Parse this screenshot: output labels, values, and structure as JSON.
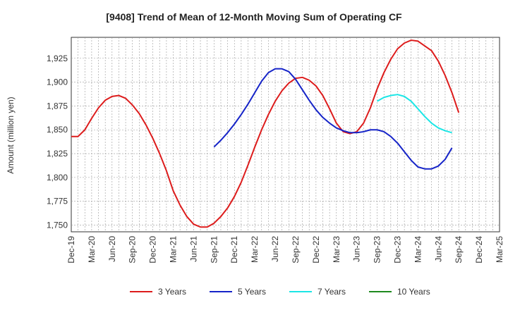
{
  "chart_data": {
    "type": "line",
    "title": "[9408]  Trend of Mean of 12-Month Moving Sum of Operating CF",
    "xlabel": "",
    "ylabel": "Amount (million yen)",
    "ylim": [
      1743,
      1947
    ],
    "yticks": [
      1750,
      1775,
      1800,
      1825,
      1850,
      1875,
      1900,
      1925
    ],
    "ytick_labels": [
      "1,750",
      "1,775",
      "1,800",
      "1,825",
      "1,850",
      "1,875",
      "1,900",
      "1,925"
    ],
    "xtick_labels": [
      "Dec-19",
      "Mar-20",
      "Jun-20",
      "Sep-20",
      "Dec-20",
      "Mar-21",
      "Jun-21",
      "Sep-21",
      "Dec-21",
      "Mar-22",
      "Jun-22",
      "Sep-22",
      "Dec-22",
      "Mar-23",
      "Jun-23",
      "Sep-23",
      "Dec-23",
      "Mar-24",
      "Jun-24",
      "Sep-24",
      "Dec-24",
      "Mar-25"
    ],
    "x_start": "Dec-19",
    "x_step": "1 month",
    "grid": true,
    "legend_position": "bottom",
    "series": [
      {
        "name": "3 Years",
        "color": "#dd1c1c",
        "start_index": 0,
        "values": [
          1843,
          1843,
          1850,
          1862,
          1873,
          1881,
          1885,
          1886,
          1883,
          1876,
          1867,
          1855,
          1841,
          1825,
          1807,
          1786,
          1771,
          1759,
          1751,
          1748,
          1748,
          1752,
          1759,
          1768,
          1780,
          1795,
          1813,
          1832,
          1850,
          1866,
          1880,
          1891,
          1899,
          1904,
          1905,
          1902,
          1896,
          1886,
          1872,
          1857,
          1848,
          1846,
          1848,
          1857,
          1873,
          1893,
          1910,
          1924,
          1935,
          1941,
          1944,
          1943,
          1938,
          1933,
          1922,
          1907,
          1889,
          1868
        ]
      },
      {
        "name": "5 Years",
        "color": "#1624c8",
        "start_index": 21,
        "values": [
          1832,
          1839,
          1847,
          1856,
          1866,
          1877,
          1889,
          1901,
          1910,
          1914,
          1914,
          1911,
          1903,
          1892,
          1881,
          1871,
          1863,
          1857,
          1852,
          1849,
          1847,
          1847,
          1848,
          1850,
          1850,
          1848,
          1843,
          1836,
          1827,
          1818,
          1811,
          1809,
          1809,
          1812,
          1819,
          1831
        ]
      },
      {
        "name": "7 Years",
        "color": "#1ce6e6",
        "start_index": 45,
        "values": [
          1880,
          1884,
          1886,
          1887,
          1885,
          1880,
          1872,
          1864,
          1857,
          1852,
          1849,
          1847
        ]
      },
      {
        "name": "10 Years",
        "color": "#1e8a1e",
        "start_index": 0,
        "values": []
      }
    ]
  }
}
